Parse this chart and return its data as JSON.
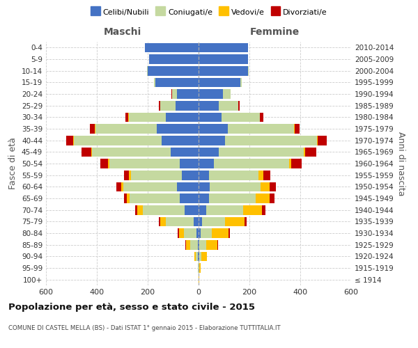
{
  "age_groups": [
    "100+",
    "95-99",
    "90-94",
    "85-89",
    "80-84",
    "75-79",
    "70-74",
    "65-69",
    "60-64",
    "55-59",
    "50-54",
    "45-49",
    "40-44",
    "35-39",
    "30-34",
    "25-29",
    "20-24",
    "15-19",
    "10-14",
    "5-9",
    "0-4"
  ],
  "birth_years": [
    "≤ 1914",
    "1915-1919",
    "1920-1924",
    "1925-1929",
    "1930-1934",
    "1935-1939",
    "1940-1944",
    "1945-1949",
    "1950-1954",
    "1955-1959",
    "1960-1964",
    "1965-1969",
    "1970-1974",
    "1975-1979",
    "1980-1984",
    "1985-1989",
    "1990-1994",
    "1995-1999",
    "2000-2004",
    "2005-2009",
    "2010-2014"
  ],
  "colors": {
    "celibi": "#4472c4",
    "coniugati": "#c5d9a0",
    "vedovi": "#ffc000",
    "divorziati": "#c00000"
  },
  "maschi": {
    "celibi": [
      0,
      0,
      2,
      4,
      8,
      20,
      55,
      75,
      85,
      65,
      75,
      110,
      145,
      165,
      130,
      90,
      85,
      170,
      200,
      195,
      210
    ],
    "coniugati": [
      0,
      2,
      10,
      30,
      50,
      110,
      165,
      195,
      210,
      200,
      275,
      310,
      345,
      240,
      145,
      60,
      20,
      5,
      2,
      0,
      0
    ],
    "vedovi": [
      0,
      2,
      5,
      15,
      20,
      20,
      20,
      12,
      10,
      8,
      5,
      3,
      2,
      2,
      2,
      2,
      0,
      0,
      0,
      0,
      0
    ],
    "divorziati": [
      0,
      0,
      0,
      2,
      4,
      5,
      8,
      12,
      18,
      20,
      30,
      38,
      28,
      20,
      10,
      5,
      2,
      0,
      0,
      0,
      0
    ]
  },
  "femmine": {
    "celibi": [
      0,
      0,
      2,
      4,
      8,
      15,
      30,
      40,
      45,
      40,
      60,
      80,
      105,
      115,
      90,
      80,
      95,
      165,
      195,
      195,
      195
    ],
    "coniugati": [
      0,
      2,
      10,
      25,
      45,
      90,
      145,
      185,
      200,
      195,
      295,
      335,
      360,
      260,
      150,
      75,
      30,
      5,
      2,
      0,
      0
    ],
    "vedovi": [
      2,
      5,
      20,
      45,
      65,
      75,
      75,
      55,
      35,
      20,
      10,
      5,
      4,
      2,
      2,
      2,
      0,
      0,
      0,
      0,
      0
    ],
    "divorziati": [
      0,
      0,
      0,
      2,
      5,
      8,
      12,
      18,
      25,
      28,
      40,
      42,
      35,
      20,
      12,
      5,
      2,
      0,
      0,
      0,
      0
    ]
  },
  "xlim": 600,
  "title": "Popolazione per età, sesso e stato civile - 2015",
  "subtitle": "COMUNE DI CASTEL MELLA (BS) - Dati ISTAT 1° gennaio 2015 - Elaborazione TUTTITALIA.IT",
  "ylabel_left": "Fasce di età",
  "ylabel_right": "Anni di nascita",
  "xlabel_maschi": "Maschi",
  "xlabel_femmine": "Femmine",
  "legend_labels": [
    "Celibi/Nubili",
    "Coniugati/e",
    "Vedovi/e",
    "Divorziati/e"
  ],
  "background_color": "#ffffff",
  "grid_color": "#cccccc",
  "bar_height": 0.82
}
